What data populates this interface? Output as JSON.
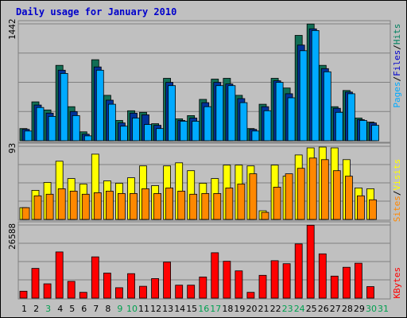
{
  "chart_data": {
    "type": "bar",
    "title": "Daily usage for January 2010",
    "categories": [
      "1",
      "2",
      "3",
      "4",
      "5",
      "6",
      "7",
      "8",
      "9",
      "10",
      "11",
      "12",
      "13",
      "14",
      "15",
      "16",
      "17",
      "18",
      "19",
      "20",
      "21",
      "22",
      "23",
      "24",
      "25",
      "26",
      "27",
      "28",
      "29",
      "30",
      "31"
    ],
    "weekend_days": [
      "3",
      "9",
      "10",
      "16",
      "17",
      "23",
      "24",
      "30",
      "31"
    ],
    "panels": [
      {
        "id": "hits",
        "ymax_label": "1442",
        "ymax": 1442,
        "legend": [
          {
            "text": "Pages",
            "color": "#00aaff"
          },
          {
            "text": "Files",
            "color": "#0000cc"
          },
          {
            "text": "Hits",
            "color": "#008060"
          }
        ],
        "series": [
          {
            "name": "Hits",
            "color": "#116e55",
            "values": [
              150,
              480,
              380,
              930,
              420,
              110,
              1000,
              560,
              250,
              370,
              350,
              210,
              770,
              270,
              310,
              510,
              760,
              770,
              560,
              150,
              450,
              770,
              650,
              1300,
              1440,
              930,
              420,
              620,
              280,
              230,
              0
            ]
          },
          {
            "name": "Files",
            "color": "#003399",
            "values": [
              140,
              440,
              340,
              870,
              360,
              80,
              910,
              500,
              220,
              340,
              320,
              190,
              720,
              250,
              280,
              470,
              720,
              700,
              520,
              140,
              420,
              740,
              580,
              1180,
              1380,
              890,
              400,
              600,
              260,
              220,
              0
            ]
          },
          {
            "name": "Pages",
            "color": "#00aaff",
            "values": [
              120,
              410,
              300,
              830,
              310,
              60,
              870,
              450,
              180,
              280,
              200,
              150,
              680,
              240,
              240,
              420,
              680,
              680,
              470,
              120,
              370,
              720,
              530,
              1110,
              1360,
              850,
              350,
              580,
              250,
              190,
              0
            ]
          }
        ]
      },
      {
        "id": "visits",
        "ymax_label": "93",
        "ymax": 93,
        "legend": [
          {
            "text": "Sites",
            "color": "#ff8800"
          },
          {
            "text": "Visits",
            "color": "#ffff00"
          }
        ],
        "series": [
          {
            "name": "Visits",
            "color": "#ffff00",
            "values": [
              15,
              37,
              47,
              74,
              52,
              45,
              83,
              49,
              46,
              53,
              68,
              43,
              68,
              72,
              62,
              46,
              52,
              69,
              69,
              68,
              11,
              69,
              55,
              82,
              91,
              92,
              91,
              76,
              40,
              39,
              0
            ]
          },
          {
            "name": "Sites",
            "color": "#ff8800",
            "values": [
              15,
              30,
              32,
              39,
              36,
              32,
              34,
              36,
              33,
              33,
              39,
              33,
              40,
              36,
              32,
              33,
              33,
              40,
              45,
              58,
              9,
              41,
              58,
              65,
              78,
              76,
              62,
              55,
              30,
              25,
              0
            ]
          }
        ]
      },
      {
        "id": "kbytes",
        "ymax_label": "26588",
        "ymax": 26588,
        "legend": [
          {
            "text": "KBytes",
            "color": "#ff0000"
          }
        ],
        "series": [
          {
            "name": "KBytes",
            "color": "#ff0000",
            "values": [
              2500,
              10800,
              5200,
              16800,
              6100,
              2100,
              15000,
              9100,
              3800,
              8900,
              4300,
              7100,
              13100,
              4700,
              4700,
              7700,
              16500,
              13400,
              9900,
              2100,
              8300,
              13600,
              12500,
              19700,
              26500,
              16100,
              8000,
              11200,
              12700,
              4200,
              0
            ]
          }
        ]
      }
    ]
  }
}
